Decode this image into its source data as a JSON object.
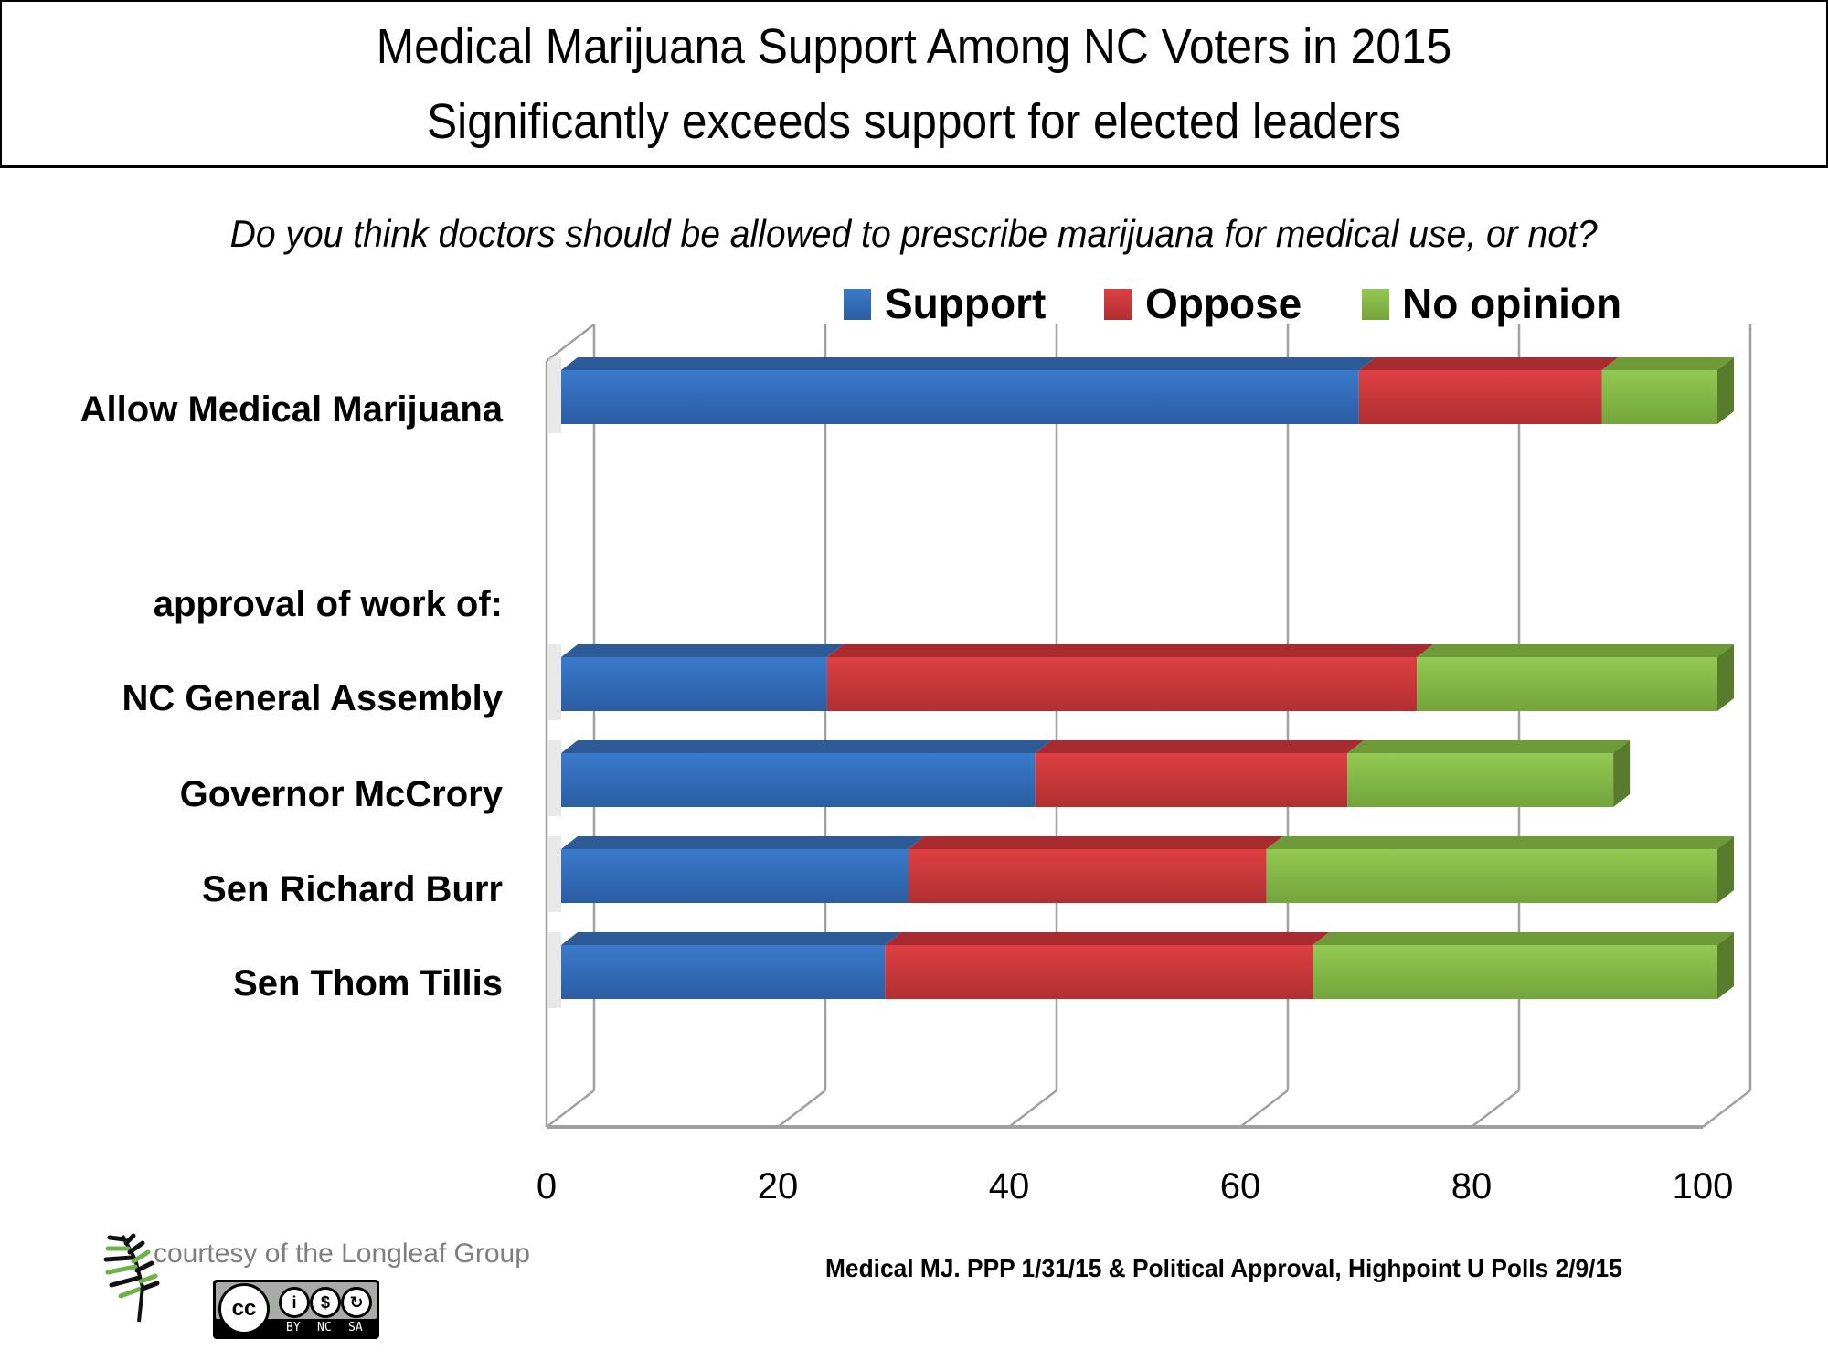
{
  "header": {
    "title_line1": "Medical Marijuana Support Among NC Voters in 2015",
    "title_line2": "Significantly exceeds support for elected leaders",
    "question": "Do you think doctors should be allowed to prescribe marijuana for medical use, or not?"
  },
  "colors": {
    "support": "#3470c0",
    "oppose": "#d43a3b",
    "no_opinion": "#86be4a",
    "gridline": "#a0a0a0"
  },
  "chart_data": {
    "type": "bar",
    "orientation": "horizontal",
    "stacked": true,
    "style": "3d",
    "title": "Medical Marijuana Support Among NC Voters in 2015 / Significantly exceeds support for elected leaders",
    "subtitle": "Do you think doctors should be allowed to prescribe marijuana for medical use, or not?",
    "xlabel": "",
    "ylabel": "",
    "xlim": [
      0,
      100
    ],
    "xticks": [
      0,
      20,
      40,
      60,
      80,
      100
    ],
    "xtick_labels": [
      "0",
      "20",
      "40",
      "60",
      "80",
      "100"
    ],
    "grid": true,
    "legend_position": "top",
    "group_label": "approval of work of:",
    "categories": [
      "Allow Medical Marijuana",
      "NC General Assembly",
      "Governor McCrory",
      "Sen Richard Burr",
      "Sen Thom Tillis"
    ],
    "series": [
      {
        "name": "Support",
        "values": [
          69,
          23,
          41,
          30,
          28
        ]
      },
      {
        "name": "Oppose",
        "values": [
          21,
          51,
          27,
          31,
          37
        ]
      },
      {
        "name": "No opinion",
        "values": [
          10,
          26,
          23,
          39,
          35
        ]
      }
    ]
  },
  "footer": {
    "credit": "courtesy of the Longleaf Group",
    "source": "Medical MJ. PPP 1/31/15 & Political Approval, Highpoint U Polls 2/9/15",
    "license_badge": {
      "main": "cc",
      "labels": [
        "BY",
        "NC",
        "SA"
      ]
    }
  }
}
